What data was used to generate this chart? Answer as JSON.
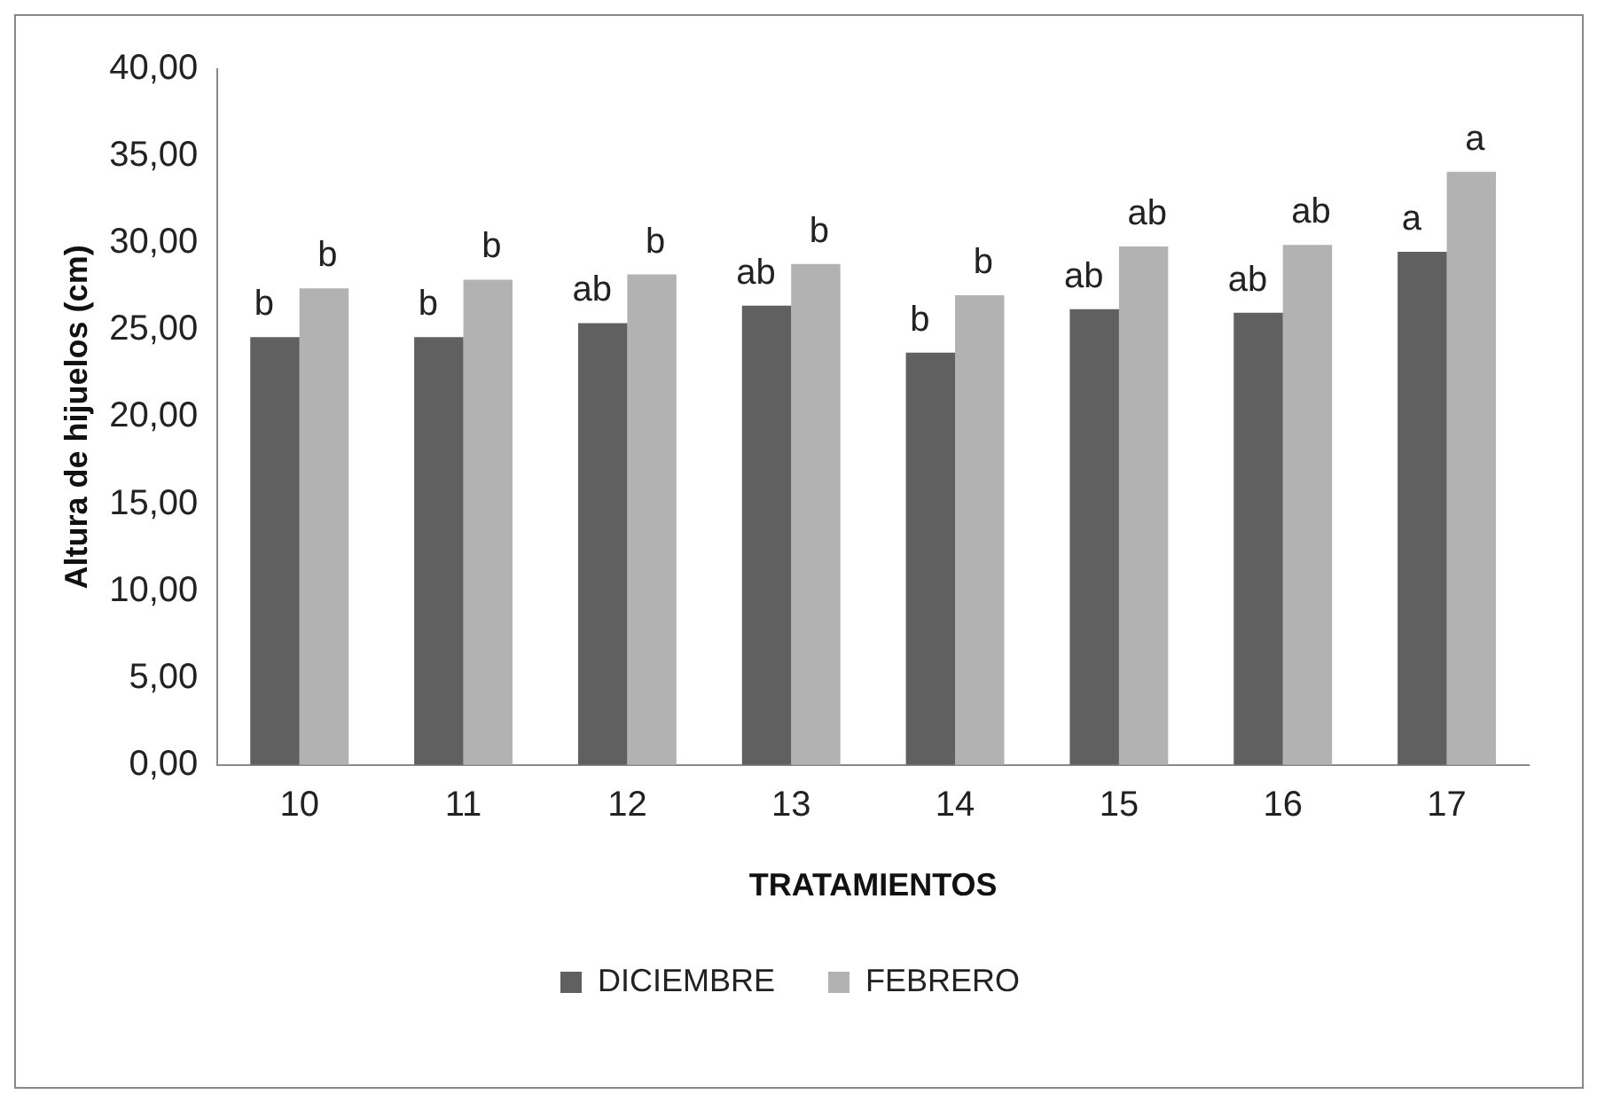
{
  "chart_data": {
    "type": "bar",
    "xlabel": "TRATAMIENTOS",
    "ylabel": "Altura de hijuelos (cm)",
    "categories": [
      "10",
      "11",
      "12",
      "13",
      "14",
      "15",
      "16",
      "17"
    ],
    "series": [
      {
        "name": "DICIEMBRE",
        "color": "#606060",
        "values": [
          24.6,
          24.6,
          25.4,
          26.4,
          23.7,
          26.2,
          26.0,
          29.5
        ],
        "value_labels": [
          "b",
          "b",
          "ab",
          "ab",
          "b",
          "ab",
          "ab",
          "a"
        ]
      },
      {
        "name": "FEBRERO",
        "color": "#b2b2b2",
        "values": [
          27.4,
          27.9,
          28.2,
          28.8,
          27.0,
          29.8,
          29.9,
          34.1
        ],
        "value_labels": [
          "b",
          "b",
          "b",
          "b",
          "b",
          "ab",
          "ab",
          "a"
        ]
      }
    ],
    "ylim": [
      0,
      40
    ],
    "yticks": [
      {
        "value": 0,
        "label": "0,00"
      },
      {
        "value": 5,
        "label": "5,00"
      },
      {
        "value": 10,
        "label": "10,00"
      },
      {
        "value": 15,
        "label": "15,00"
      },
      {
        "value": 20,
        "label": "20,00"
      },
      {
        "value": 25,
        "label": "25,00"
      },
      {
        "value": 30,
        "label": "30,00"
      },
      {
        "value": 35,
        "label": "35,00"
      },
      {
        "value": 40,
        "label": "40,00"
      }
    ],
    "grid": false,
    "legend": "bottom"
  }
}
